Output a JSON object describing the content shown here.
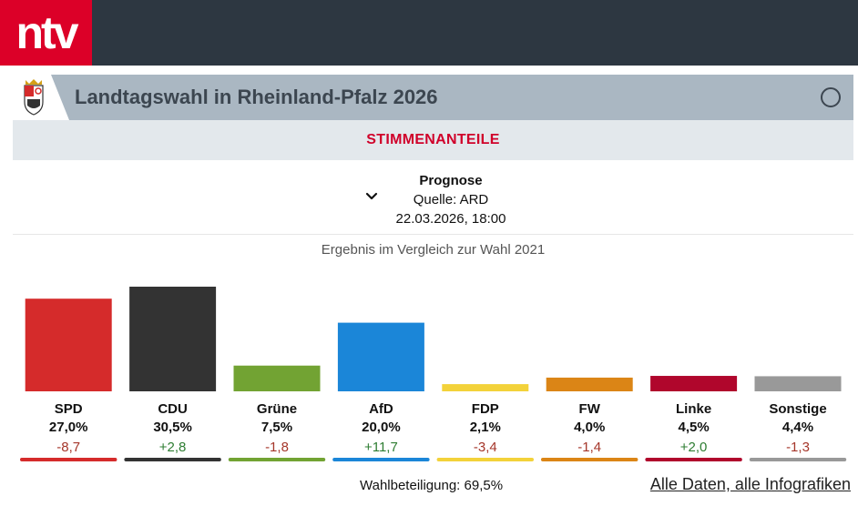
{
  "header": {
    "logo_text": "ntv"
  },
  "title": "Landtagswahl in Rheinland-Pfalz 2026",
  "tab": "STIMMENANTEILE",
  "forecast": {
    "label": "Prognose",
    "source": "Quelle: ARD",
    "datetime": "22.03.2026, 18:00"
  },
  "subtitle": "Ergebnis im Vergleich zur Wahl 2021",
  "footer": {
    "turnout": "Wahlbeteiligung: 69,5%",
    "link": "Alle Daten, alle Infografiken"
  },
  "chart_data": {
    "type": "bar",
    "categories": [
      "SPD",
      "CDU",
      "Grüne",
      "AfD",
      "FDP",
      "FW",
      "Linke",
      "Sonstige"
    ],
    "values": [
      27.0,
      30.5,
      7.5,
      20.0,
      2.1,
      4.0,
      4.5,
      4.4
    ],
    "value_labels": [
      "27,0%",
      "30,5%",
      "7,5%",
      "20,0%",
      "2,1%",
      "4,0%",
      "4,5%",
      "4,4%"
    ],
    "changes": [
      -8.7,
      2.8,
      -1.8,
      11.7,
      -3.4,
      -1.4,
      2.0,
      -1.3
    ],
    "change_labels": [
      "-8,7",
      "+2,8",
      "-1,8",
      "+11,7",
      "-3,4",
      "-1,4",
      "+2,0",
      "-1,3"
    ],
    "colors": [
      "#d52b2b",
      "#333333",
      "#72a333",
      "#1b86d8",
      "#f3d23a",
      "#db8516",
      "#b0062c",
      "#999999"
    ],
    "change_colors": {
      "positive": "#2e7d32",
      "negative": "#a5362a"
    },
    "ylim": [
      0,
      30.5
    ]
  }
}
